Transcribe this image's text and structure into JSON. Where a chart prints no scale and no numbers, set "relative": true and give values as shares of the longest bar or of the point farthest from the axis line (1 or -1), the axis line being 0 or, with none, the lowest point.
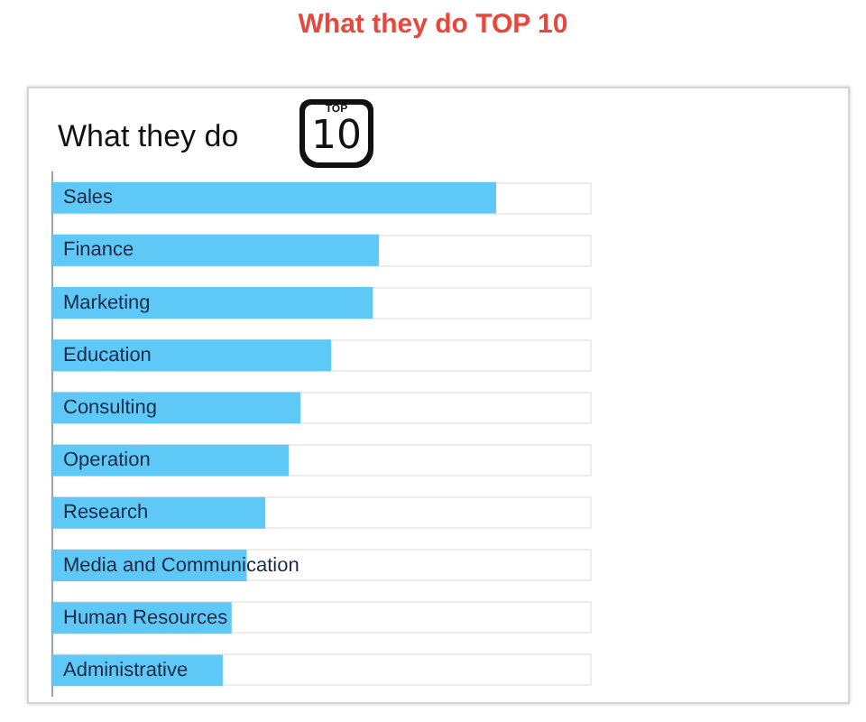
{
  "chart_data": {
    "type": "bar",
    "orientation": "horizontal",
    "relative": true,
    "title": "What they do TOP 10",
    "subtitle": "What they do",
    "annotations": [
      "TOP",
      "10"
    ],
    "categories": [
      "Sales",
      "Finance",
      "Marketing",
      "Education",
      "Consulting",
      "Operation",
      "Research",
      "Media and Communication",
      "Human Resources",
      "Administrative"
    ],
    "values": [
      1,
      0.736,
      0.722,
      0.628,
      0.559,
      0.533,
      0.48,
      0.438,
      0.404,
      0.384
    ],
    "color": "#5ec8f7",
    "legend": false
  }
}
